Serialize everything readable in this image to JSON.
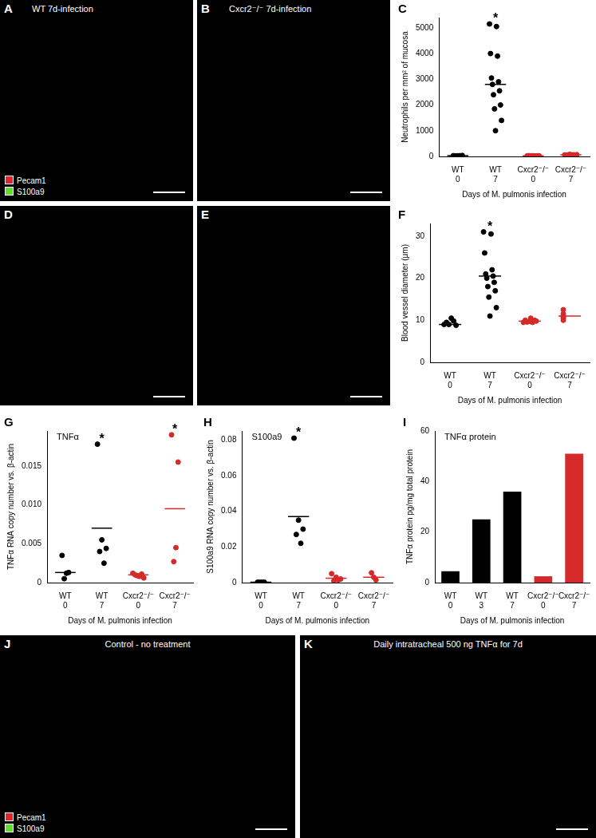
{
  "images": [
    {
      "panel": "A",
      "caption": "WT 7d-infection",
      "channels": [
        {
          "name": "Pecam1",
          "color": "#e0262b"
        },
        {
          "name": "S100a9",
          "color": "#5ee02a"
        }
      ]
    },
    {
      "panel": "B",
      "caption": "Cxcr2⁻/⁻ 7d-infection"
    },
    {
      "panel": "D"
    },
    {
      "panel": "E"
    },
    {
      "panel": "J",
      "caption": "Control - no treatment",
      "channels": [
        {
          "name": "Pecam1",
          "color": "#e0262b"
        },
        {
          "name": "S100a9",
          "color": "#5ee02a"
        }
      ]
    },
    {
      "panel": "K",
      "caption": "Daily intratracheal 500 ng TNFα for 7d"
    }
  ],
  "chart_data": [
    {
      "panel": "C",
      "type": "strip",
      "categories": [
        [
          "WT",
          "0"
        ],
        [
          "WT",
          "7"
        ],
        [
          "Cxcr2⁻/⁻",
          "0"
        ],
        [
          "Cxcr2⁻/⁻",
          "7"
        ]
      ],
      "points": [
        [
          30,
          25,
          35,
          20,
          30
        ],
        [
          5150,
          5050,
          4000,
          3900,
          3050,
          2900,
          2800,
          2550,
          2400,
          2000,
          1850,
          1400,
          1000
        ],
        [
          20,
          25,
          15,
          20,
          30,
          20,
          15,
          25,
          20
        ],
        [
          60,
          70,
          50,
          65,
          55,
          80,
          60,
          50
        ]
      ],
      "means": [
        30,
        2800,
        20,
        60
      ],
      "marks": [
        null,
        "*",
        null,
        null
      ],
      "colors": [
        "#000000",
        "#000000",
        "#d42a2a",
        "#d42a2a"
      ],
      "y_label": "Neutrophils per mm² of mucosa",
      "x_label": "Days of M. pulmonis infection",
      "ylim": [
        0,
        5400
      ],
      "yticks": [
        0,
        1000,
        2000,
        3000,
        4000,
        5000
      ],
      "grid": false
    },
    {
      "panel": "F",
      "type": "strip",
      "categories": [
        [
          "WT",
          "0"
        ],
        [
          "WT",
          "7"
        ],
        [
          "Cxcr2⁻/⁻",
          "0"
        ],
        [
          "Cxcr2⁻/⁻",
          "7"
        ]
      ],
      "points": [
        [
          9.0,
          9.5,
          9.0,
          10.5,
          9.8,
          8.8
        ],
        [
          31,
          30.5,
          26,
          22,
          21,
          20.5,
          20,
          19,
          18,
          17,
          15.5,
          13,
          11
        ],
        [
          9.5,
          9.8,
          10,
          9.5,
          10.5,
          9.7,
          9.6,
          10
        ],
        [
          11.5,
          12.5,
          11,
          10.5,
          10.8,
          11,
          10
        ]
      ],
      "means": [
        9,
        20.5,
        9.8,
        11
      ],
      "marks": [
        null,
        "*",
        null,
        null
      ],
      "colors": [
        "#000000",
        "#000000",
        "#d42a2a",
        "#d42a2a"
      ],
      "y_label": "Blood vessel diameter (μm)",
      "x_label": "Days of M. pulmonis infection",
      "ylim": [
        0,
        33
      ],
      "yticks": [
        0,
        10,
        20,
        30
      ],
      "grid": false
    },
    {
      "panel": "G",
      "type": "strip",
      "title": "TNFα",
      "categories": [
        [
          "WT",
          "0"
        ],
        [
          "WT",
          "7"
        ],
        [
          "Cxcr2⁻/⁻",
          "0"
        ],
        [
          "Cxcr2⁻/⁻",
          "7"
        ]
      ],
      "points": [
        [
          0.0035,
          0.0013,
          0.0012,
          0.0005
        ],
        [
          0.0178,
          0.0055,
          0.0044,
          0.004,
          0.0025
        ],
        [
          0.0012,
          0.001,
          0.0009,
          0.0008,
          0.0011,
          0.0006
        ],
        [
          0.019,
          0.0155,
          0.0045,
          0.0027
        ]
      ],
      "means": [
        0.0013,
        0.007,
        0.001,
        0.0095
      ],
      "marks": [
        null,
        "*",
        null,
        "*"
      ],
      "colors": [
        "#000000",
        "#000000",
        "#d42a2a",
        "#d42a2a"
      ],
      "y_label": "TNFα RNA copy number vs. β-actin",
      "x_label": "Days of M. pulmonis infection",
      "ylim": [
        0,
        0.0195
      ],
      "yticks": [
        0,
        0.005,
        {
          "value": 0.01,
          "label": "0.010"
        },
        0.015
      ],
      "grid": false
    },
    {
      "panel": "H",
      "type": "strip",
      "title": "S100a9",
      "categories": [
        [
          "WT",
          "0"
        ],
        [
          "WT",
          "7"
        ],
        [
          "Cxcr2⁻/⁻",
          "0"
        ],
        [
          "Cxcr2⁻/⁻",
          "7"
        ]
      ],
      "points": [
        [
          0.0002,
          0.0002,
          0.0002,
          0.0002
        ],
        [
          0.081,
          0.035,
          0.03,
          0.027,
          0.022
        ],
        [
          0.005,
          0.003,
          0.002,
          0.001,
          0.0015
        ],
        [
          0.0055,
          0.003,
          0.0015
        ]
      ],
      "means": [
        0.0002,
        0.037,
        0.0025,
        0.003
      ],
      "marks": [
        null,
        "*",
        null,
        null
      ],
      "colors": [
        "#000000",
        "#000000",
        "#d42a2a",
        "#d42a2a"
      ],
      "y_label": "S100a9 RNA copy number vs. β-actin",
      "x_label": "Days of M. pulmonis infection",
      "ylim": [
        0,
        0.085
      ],
      "yticks": [
        0,
        0.02,
        0.04,
        0.06,
        0.08
      ],
      "grid": false
    },
    {
      "panel": "I",
      "type": "bar",
      "title": "TNFα protein",
      "categories": [
        [
          "WT",
          "0"
        ],
        [
          "WT",
          "3"
        ],
        [
          "WT",
          "7"
        ],
        [
          "Cxcr2⁻/⁻",
          "0"
        ],
        [
          "Cxcr2⁻/⁻",
          "7"
        ]
      ],
      "values": [
        4.5,
        25,
        36,
        2.5,
        51
      ],
      "colors": [
        "#000000",
        "#000000",
        "#000000",
        "#d42a2a",
        "#d42a2a"
      ],
      "y_label": "TNFα protein pg/mg total protein",
      "x_label": "Days of M. pulmonis infection",
      "ylim": [
        0,
        60
      ],
      "yticks": [
        0,
        20,
        40,
        60
      ],
      "grid": false
    }
  ]
}
